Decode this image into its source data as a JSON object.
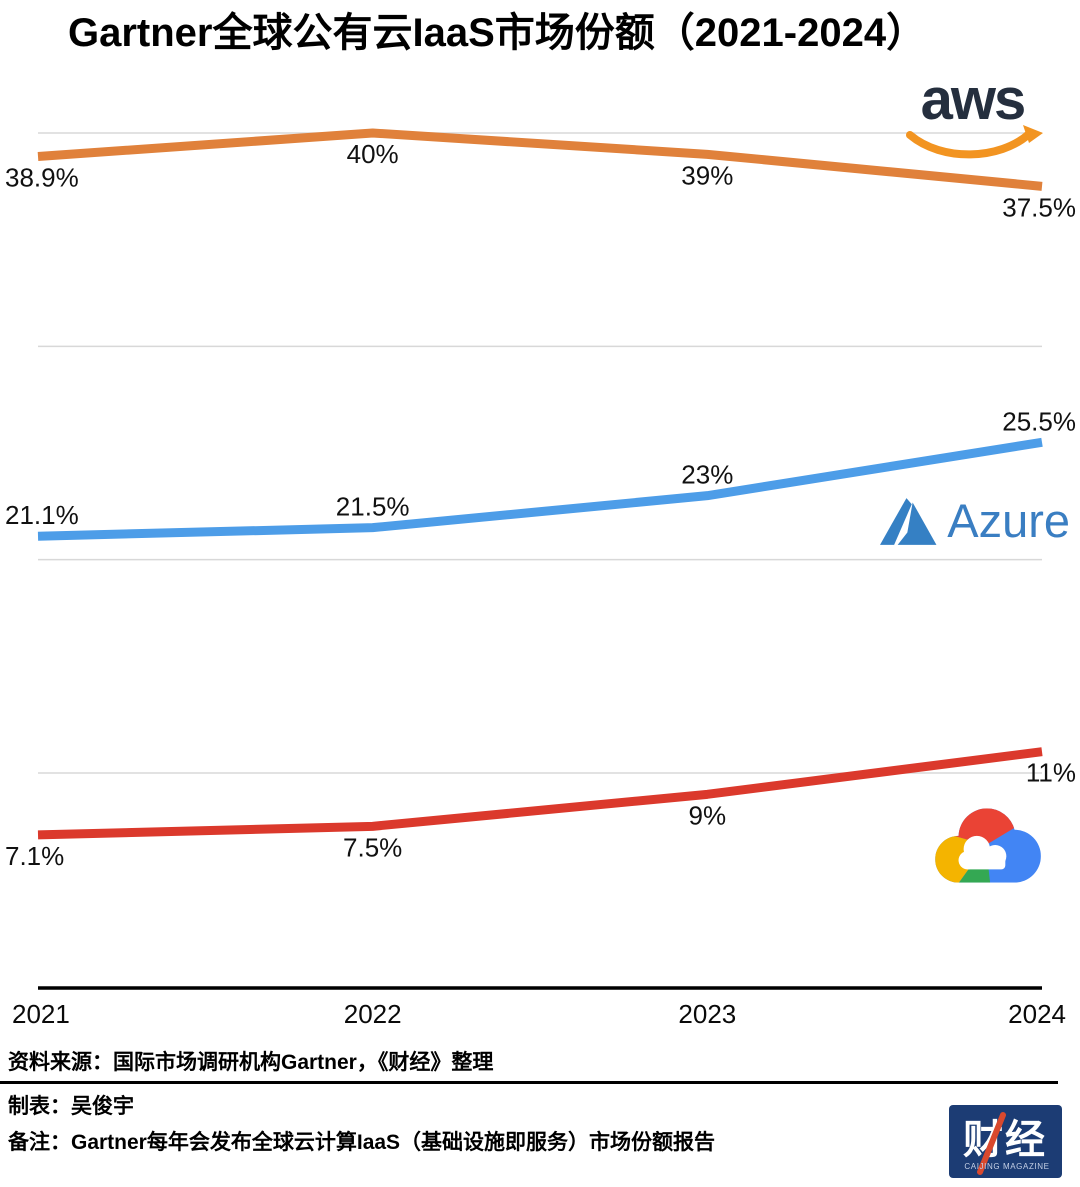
{
  "title": "Gartner全球公有云IaaS市场份额（2021-2024）",
  "chart_data": {
    "type": "line",
    "title": "Gartner全球公有云IaaS市场份额（2021-2024）",
    "categories": [
      "2021",
      "2022",
      "2023",
      "2024"
    ],
    "series": [
      {
        "name": "AWS",
        "color": "#E0813B",
        "values": [
          38.9,
          40,
          39,
          37.5
        ],
        "labels": [
          "38.9%",
          "40%",
          "39%",
          "37.5%"
        ],
        "label_position": "below",
        "logo": "aws-logo"
      },
      {
        "name": "Azure",
        "color": "#4D9DE8",
        "values": [
          21.1,
          21.5,
          23,
          25.5
        ],
        "labels": [
          "21.1%",
          "21.5%",
          "23%",
          "25.5%"
        ],
        "label_position": "above",
        "logo": "azure-logo"
      },
      {
        "name": "Google Cloud",
        "color": "#DB392C",
        "values": [
          7.1,
          7.5,
          9,
          11
        ],
        "labels": [
          "7.1%",
          "7.5%",
          "9%",
          "11%"
        ],
        "label_position": "below",
        "logo": "google-cloud-logo"
      }
    ],
    "xlabel": "",
    "ylabel": "",
    "ylim": [
      10,
      40
    ],
    "gridlines": [
      40,
      30,
      20,
      10
    ],
    "grid": true,
    "legend_position": "inline-logos"
  },
  "logos": {
    "aws": {
      "text": "aws"
    },
    "azure": {
      "text": "Azure"
    },
    "google": {
      "name": "google-cloud-logo"
    },
    "caijing": {
      "text": "财经",
      "subtext": "CAIJING MAGAZINE"
    }
  },
  "footer": {
    "source": "资料来源：国际市场调研机构Gartner，《财经》整理",
    "author": "制表：吴俊宇",
    "note": "备注：Gartner每年会发布全球云计算IaaS（基础设施即服务）市场份额报告"
  },
  "colors": {
    "grid": "#D8D8D8",
    "axis": "#000000",
    "aws_text": "#252F3E",
    "aws_smile": "#F29421",
    "azure_blue": "#3A7EC2",
    "azure_mark": "#3580C4",
    "google_red": "#EA4335",
    "google_yellow": "#F4B400",
    "google_green": "#34A853",
    "google_blue": "#4285F4",
    "caijing_bg": "#1C3C74",
    "caijing_red": "#D9492E",
    "caijing_subtext": "#C5D0E6"
  }
}
